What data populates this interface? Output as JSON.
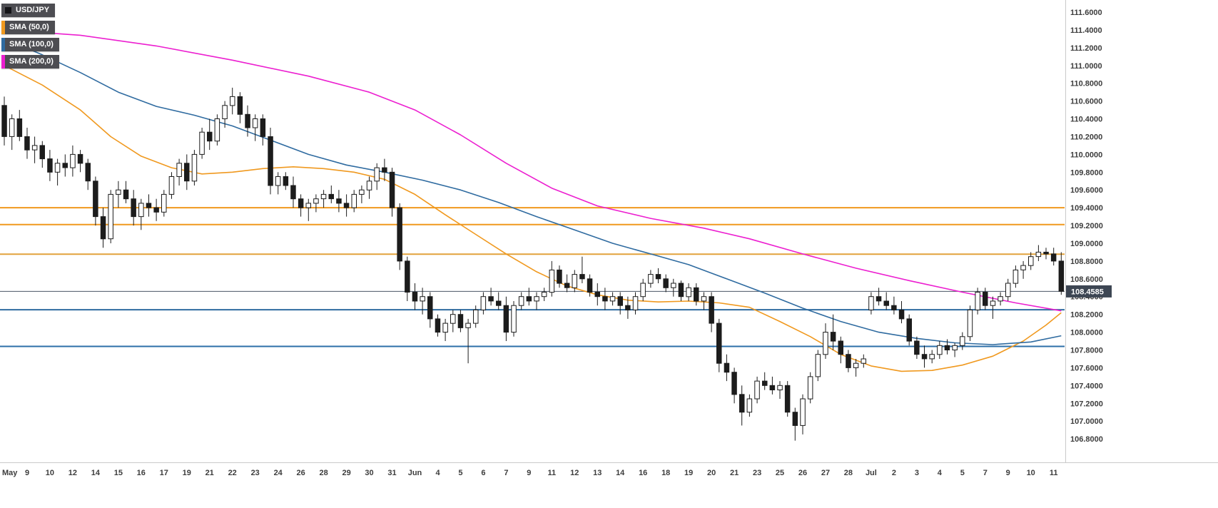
{
  "legend": {
    "symbol": "USD/JPY",
    "indicators": [
      {
        "label": "SMA (50,0)",
        "color": "#f0991f"
      },
      {
        "label": "SMA (100,0)",
        "color": "#2f6ba0"
      },
      {
        "label": "SMA (200,0)",
        "color": "#ec1fd0"
      }
    ]
  },
  "chart_data": {
    "type": "candlestick",
    "symbol": "USD/JPY",
    "current_price": "108.4585",
    "y_axis": {
      "max_price": 111.7365,
      "min_price": 106.536,
      "tick_max": 111.6,
      "tick_step": 0.2,
      "ticks": 25,
      "decimals": 4
    },
    "x_axis": {
      "labels": [
        "May",
        "9",
        "10",
        "12",
        "14",
        "15",
        "16",
        "17",
        "19",
        "21",
        "22",
        "23",
        "24",
        "26",
        "28",
        "29",
        "30",
        "31",
        "Jun",
        "4",
        "5",
        "6",
        "7",
        "9",
        "11",
        "12",
        "13",
        "14",
        "16",
        "18",
        "19",
        "20",
        "21",
        "23",
        "25",
        "26",
        "27",
        "28",
        "Jul",
        "2",
        "3",
        "4",
        "5",
        "7",
        "9",
        "10",
        "11"
      ],
      "candles_per_label": 3
    },
    "style": {
      "up_fill": "#ffffff",
      "down_fill": "#1c1c1c",
      "stroke": "#1c1c1c",
      "axis_text": "#3c3c3c",
      "badge_bg": "#3d4653",
      "badge_text": "#ffffff",
      "separator": "#c9c9c9"
    },
    "h_lines": [
      {
        "price": 109.4,
        "color": "#f0991f",
        "width": 2
      },
      {
        "price": 109.21,
        "color": "#f0991f",
        "width": 2
      },
      {
        "price": 108.878,
        "color": "#e2a23c",
        "width": 2
      },
      {
        "price": 108.4585,
        "color": "#4a5565",
        "width": 1
      },
      {
        "price": 108.253,
        "color": "#2f6ba0",
        "width": 2
      },
      {
        "price": 107.84,
        "color": "#2d6fa8",
        "width": 2
      }
    ],
    "candles": [
      [
        110.55,
        110.65,
        110.1,
        110.2
      ],
      [
        110.2,
        110.45,
        110.05,
        110.4
      ],
      [
        110.4,
        110.5,
        110.15,
        110.2
      ],
      [
        110.2,
        110.3,
        109.95,
        110.05
      ],
      [
        110.05,
        110.2,
        109.9,
        110.1
      ],
      [
        110.1,
        110.15,
        109.85,
        109.95
      ],
      [
        109.95,
        110.05,
        109.7,
        109.8
      ],
      [
        109.8,
        109.95,
        109.65,
        109.9
      ],
      [
        109.9,
        110.0,
        109.75,
        109.85
      ],
      [
        109.85,
        110.1,
        109.75,
        110.0
      ],
      [
        110.0,
        110.05,
        109.8,
        109.9
      ],
      [
        109.9,
        109.95,
        109.6,
        109.7
      ],
      [
        109.7,
        109.75,
        109.2,
        109.3
      ],
      [
        109.3,
        109.4,
        108.95,
        109.05
      ],
      [
        109.05,
        109.6,
        109.0,
        109.55
      ],
      [
        109.55,
        109.7,
        109.4,
        109.6
      ],
      [
        109.6,
        109.7,
        109.45,
        109.5
      ],
      [
        109.5,
        109.6,
        109.2,
        109.3
      ],
      [
        109.3,
        109.5,
        109.15,
        109.45
      ],
      [
        109.45,
        109.55,
        109.3,
        109.4
      ],
      [
        109.4,
        109.5,
        109.25,
        109.35
      ],
      [
        109.35,
        109.6,
        109.3,
        109.55
      ],
      [
        109.55,
        109.8,
        109.5,
        109.75
      ],
      [
        109.75,
        109.95,
        109.65,
        109.9
      ],
      [
        109.9,
        110.0,
        109.6,
        109.7
      ],
      [
        109.7,
        110.05,
        109.65,
        110.0
      ],
      [
        110.0,
        110.3,
        109.95,
        110.25
      ],
      [
        110.25,
        110.4,
        110.05,
        110.15
      ],
      [
        110.15,
        110.45,
        110.1,
        110.4
      ],
      [
        110.4,
        110.6,
        110.3,
        110.55
      ],
      [
        110.55,
        110.75,
        110.45,
        110.65
      ],
      [
        110.65,
        110.7,
        110.35,
        110.45
      ],
      [
        110.45,
        110.55,
        110.2,
        110.3
      ],
      [
        110.3,
        110.45,
        110.15,
        110.4
      ],
      [
        110.4,
        110.45,
        110.1,
        110.2
      ],
      [
        110.2,
        110.3,
        109.55,
        109.65
      ],
      [
        109.65,
        109.8,
        109.55,
        109.75
      ],
      [
        109.75,
        109.8,
        109.6,
        109.65
      ],
      [
        109.65,
        109.75,
        109.4,
        109.5
      ],
      [
        109.5,
        109.55,
        109.3,
        109.4
      ],
      [
        109.4,
        109.5,
        109.25,
        109.45
      ],
      [
        109.45,
        109.55,
        109.35,
        109.5
      ],
      [
        109.5,
        109.6,
        109.4,
        109.55
      ],
      [
        109.55,
        109.65,
        109.45,
        109.5
      ],
      [
        109.5,
        109.6,
        109.35,
        109.45
      ],
      [
        109.45,
        109.55,
        109.3,
        109.4
      ],
      [
        109.4,
        109.6,
        109.35,
        109.55
      ],
      [
        109.55,
        109.65,
        109.45,
        109.6
      ],
      [
        109.6,
        109.75,
        109.5,
        109.7
      ],
      [
        109.7,
        109.9,
        109.6,
        109.85
      ],
      [
        109.85,
        109.95,
        109.7,
        109.8
      ],
      [
        109.8,
        109.85,
        109.3,
        109.4
      ],
      [
        109.4,
        109.45,
        108.7,
        108.8
      ],
      [
        108.8,
        108.85,
        108.35,
        108.45
      ],
      [
        108.45,
        108.55,
        108.25,
        108.35
      ],
      [
        108.35,
        108.5,
        108.2,
        108.4
      ],
      [
        108.4,
        108.45,
        108.05,
        108.15
      ],
      [
        108.15,
        108.2,
        107.95,
        108.0
      ],
      [
        108.0,
        108.15,
        107.9,
        108.1
      ],
      [
        108.1,
        108.25,
        108.0,
        108.2
      ],
      [
        108.2,
        108.25,
        108.0,
        108.05
      ],
      [
        108.05,
        108.15,
        107.65,
        108.1
      ],
      [
        108.1,
        108.3,
        108.05,
        108.25
      ],
      [
        108.25,
        108.45,
        108.2,
        108.4
      ],
      [
        108.4,
        108.5,
        108.3,
        108.35
      ],
      [
        108.35,
        108.45,
        108.25,
        108.3
      ],
      [
        108.3,
        108.4,
        107.9,
        108.0
      ],
      [
        108.0,
        108.35,
        107.95,
        108.3
      ],
      [
        108.3,
        108.45,
        108.25,
        108.4
      ],
      [
        108.4,
        108.5,
        108.3,
        108.35
      ],
      [
        108.35,
        108.45,
        108.25,
        108.4
      ],
      [
        108.4,
        108.5,
        108.35,
        108.45
      ],
      [
        108.45,
        108.8,
        108.4,
        108.7
      ],
      [
        108.7,
        108.75,
        108.5,
        108.55
      ],
      [
        108.55,
        108.65,
        108.45,
        108.5
      ],
      [
        108.5,
        108.7,
        108.45,
        108.65
      ],
      [
        108.65,
        108.85,
        108.55,
        108.6
      ],
      [
        108.6,
        108.65,
        108.4,
        108.45
      ],
      [
        108.45,
        108.55,
        108.3,
        108.4
      ],
      [
        108.4,
        108.5,
        108.25,
        108.35
      ],
      [
        108.35,
        108.45,
        108.3,
        108.4
      ],
      [
        108.4,
        108.45,
        108.2,
        108.3
      ],
      [
        108.3,
        108.4,
        108.15,
        108.25
      ],
      [
        108.25,
        108.45,
        108.2,
        108.4
      ],
      [
        108.4,
        108.6,
        108.35,
        108.55
      ],
      [
        108.55,
        108.7,
        108.5,
        108.65
      ],
      [
        108.65,
        108.72,
        108.55,
        108.6
      ],
      [
        108.6,
        108.65,
        108.45,
        108.5
      ],
      [
        108.5,
        108.6,
        108.4,
        108.55
      ],
      [
        108.55,
        108.58,
        108.35,
        108.4
      ],
      [
        108.4,
        108.55,
        108.35,
        108.5
      ],
      [
        108.5,
        108.55,
        108.3,
        108.35
      ],
      [
        108.35,
        108.45,
        108.25,
        108.4
      ],
      [
        108.4,
        108.45,
        108.0,
        108.1
      ],
      [
        108.1,
        108.15,
        107.55,
        107.65
      ],
      [
        107.65,
        107.75,
        107.45,
        107.55
      ],
      [
        107.55,
        107.6,
        107.2,
        107.3
      ],
      [
        107.3,
        107.4,
        106.95,
        107.1
      ],
      [
        107.1,
        107.3,
        107.05,
        107.25
      ],
      [
        107.25,
        107.5,
        107.2,
        107.45
      ],
      [
        107.45,
        107.55,
        107.35,
        107.4
      ],
      [
        107.4,
        107.5,
        107.3,
        107.35
      ],
      [
        107.35,
        107.45,
        107.25,
        107.4
      ],
      [
        107.4,
        107.45,
        107.05,
        107.1
      ],
      [
        107.1,
        107.15,
        106.78,
        106.95
      ],
      [
        106.95,
        107.3,
        106.85,
        107.25
      ],
      [
        107.25,
        107.55,
        107.2,
        107.5
      ],
      [
        107.5,
        107.8,
        107.45,
        107.75
      ],
      [
        107.75,
        108.1,
        107.7,
        108.0
      ],
      [
        108.0,
        108.2,
        107.8,
        107.9
      ],
      [
        107.9,
        107.95,
        107.65,
        107.75
      ],
      [
        107.75,
        107.8,
        107.55,
        107.6
      ],
      [
        107.6,
        107.7,
        107.5,
        107.65
      ],
      [
        107.65,
        107.75,
        107.6,
        107.7
      ],
      [
        108.25,
        108.45,
        108.2,
        108.4
      ],
      [
        108.4,
        108.5,
        108.3,
        108.35
      ],
      [
        108.35,
        108.45,
        108.25,
        108.3
      ],
      [
        108.3,
        108.4,
        108.2,
        108.25
      ],
      [
        108.25,
        108.35,
        108.1,
        108.15
      ],
      [
        108.15,
        108.2,
        107.85,
        107.9
      ],
      [
        107.9,
        107.95,
        107.7,
        107.75
      ],
      [
        107.75,
        107.85,
        107.6,
        107.7
      ],
      [
        107.7,
        107.8,
        107.65,
        107.75
      ],
      [
        107.75,
        107.9,
        107.7,
        107.85
      ],
      [
        107.85,
        107.92,
        107.75,
        107.8
      ],
      [
        107.8,
        107.88,
        107.72,
        107.85
      ],
      [
        107.85,
        108.0,
        107.8,
        107.95
      ],
      [
        107.95,
        108.3,
        107.9,
        108.25
      ],
      [
        108.25,
        108.5,
        108.2,
        108.45
      ],
      [
        108.45,
        108.5,
        108.25,
        108.3
      ],
      [
        108.3,
        108.4,
        108.15,
        108.35
      ],
      [
        108.35,
        108.45,
        108.3,
        108.4
      ],
      [
        108.4,
        108.6,
        108.35,
        108.55
      ],
      [
        108.55,
        108.75,
        108.5,
        108.7
      ],
      [
        108.7,
        108.8,
        108.6,
        108.75
      ],
      [
        108.75,
        108.9,
        108.7,
        108.85
      ],
      [
        108.85,
        108.98,
        108.8,
        108.9
      ],
      [
        108.9,
        108.95,
        108.82,
        108.88
      ],
      [
        108.88,
        108.95,
        108.75,
        108.8
      ],
      [
        108.8,
        108.9,
        108.42,
        108.46
      ]
    ],
    "sma": [
      {
        "name": "SMA50",
        "color": "#f0991f",
        "points": [
          [
            0,
            111.0
          ],
          [
            5,
            110.78
          ],
          [
            10,
            110.5
          ],
          [
            14,
            110.2
          ],
          [
            18,
            109.98
          ],
          [
            22,
            109.85
          ],
          [
            26,
            109.78
          ],
          [
            30,
            109.8
          ],
          [
            34,
            109.84
          ],
          [
            38,
            109.86
          ],
          [
            42,
            109.84
          ],
          [
            46,
            109.8
          ],
          [
            50,
            109.72
          ],
          [
            54,
            109.55
          ],
          [
            58,
            109.32
          ],
          [
            62,
            109.1
          ],
          [
            66,
            108.88
          ],
          [
            70,
            108.68
          ],
          [
            74,
            108.52
          ],
          [
            78,
            108.42
          ],
          [
            82,
            108.36
          ],
          [
            86,
            108.34
          ],
          [
            90,
            108.35
          ],
          [
            94,
            108.33
          ],
          [
            98,
            108.28
          ],
          [
            102,
            108.12
          ],
          [
            106,
            107.95
          ],
          [
            110,
            107.75
          ],
          [
            114,
            107.62
          ],
          [
            118,
            107.56
          ],
          [
            122,
            107.57
          ],
          [
            126,
            107.63
          ],
          [
            130,
            107.73
          ],
          [
            134,
            107.9
          ],
          [
            137,
            108.08
          ],
          [
            139,
            108.22
          ]
        ]
      },
      {
        "name": "SMA100",
        "color": "#2f6ba0",
        "points": [
          [
            0,
            111.3
          ],
          [
            5,
            111.12
          ],
          [
            10,
            110.92
          ],
          [
            15,
            110.7
          ],
          [
            20,
            110.54
          ],
          [
            25,
            110.44
          ],
          [
            30,
            110.32
          ],
          [
            35,
            110.16
          ],
          [
            40,
            110.0
          ],
          [
            45,
            109.88
          ],
          [
            50,
            109.8
          ],
          [
            55,
            109.71
          ],
          [
            60,
            109.6
          ],
          [
            65,
            109.46
          ],
          [
            70,
            109.3
          ],
          [
            75,
            109.15
          ],
          [
            80,
            109.0
          ],
          [
            85,
            108.88
          ],
          [
            90,
            108.76
          ],
          [
            95,
            108.6
          ],
          [
            100,
            108.44
          ],
          [
            105,
            108.27
          ],
          [
            110,
            108.12
          ],
          [
            115,
            108.0
          ],
          [
            120,
            107.93
          ],
          [
            125,
            107.88
          ],
          [
            130,
            107.86
          ],
          [
            135,
            107.89
          ],
          [
            139,
            107.96
          ]
        ]
      },
      {
        "name": "SMA200",
        "color": "#ec1fd0",
        "points": [
          [
            0,
            111.4
          ],
          [
            10,
            111.34
          ],
          [
            20,
            111.22
          ],
          [
            30,
            111.06
          ],
          [
            40,
            110.88
          ],
          [
            48,
            110.7
          ],
          [
            54,
            110.5
          ],
          [
            60,
            110.22
          ],
          [
            66,
            109.9
          ],
          [
            72,
            109.62
          ],
          [
            78,
            109.42
          ],
          [
            85,
            109.28
          ],
          [
            92,
            109.17
          ],
          [
            98,
            109.05
          ],
          [
            105,
            108.88
          ],
          [
            112,
            108.72
          ],
          [
            119,
            108.58
          ],
          [
            126,
            108.45
          ],
          [
            133,
            108.33
          ],
          [
            139,
            108.24
          ]
        ]
      }
    ]
  }
}
